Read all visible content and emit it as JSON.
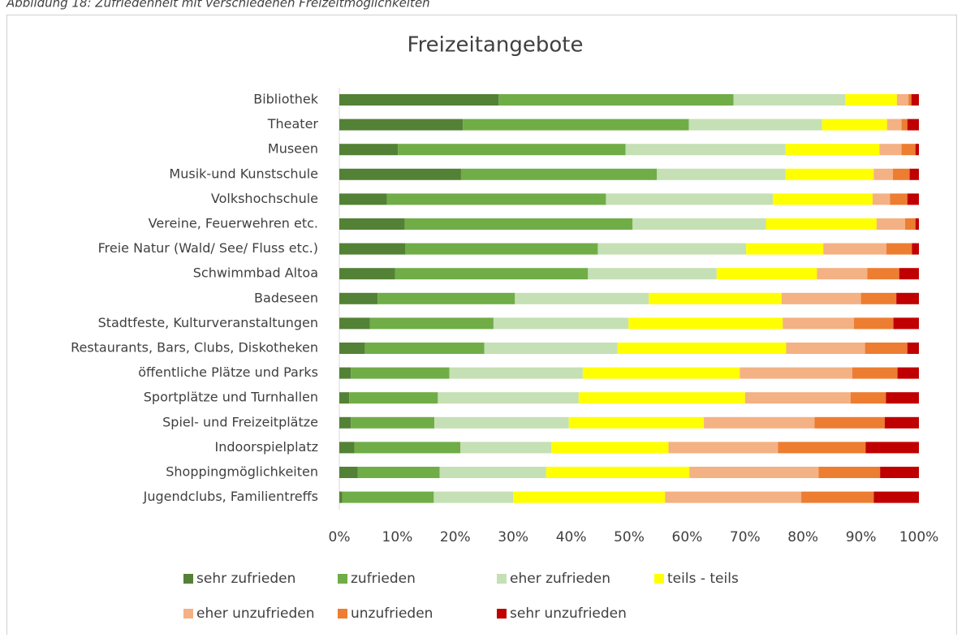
{
  "caption": "Abbildung 18: Zufriedenheit mit verschiedenen Freizeitmöglichkeiten",
  "chart_data": {
    "type": "bar",
    "orientation": "horizontal",
    "stacked": true,
    "title": "Freizeitangebote",
    "categories": [
      "Bibliothek",
      "Theater",
      "Museen",
      "Musik-und Kunstschule",
      "Volkshochschule",
      "Vereine, Feuerwehren etc.",
      "Freie Natur (Wald/ See/ Fluss etc.)",
      "Schwimmbad Altoa",
      "Badeseen",
      "Stadtfeste,  Kulturveranstaltungen",
      "Restaurants, Bars, Clubs, Diskotheken",
      "öffentliche Plätze und Parks",
      "Sportplätze und Turnhallen",
      "Spiel- und Freizeitplätze",
      "Indoorspielplatz",
      "Shoppingmöglichkeiten",
      "Jugendclubs, Familientreffs"
    ],
    "series": [
      {
        "name": "sehr zufrieden",
        "color": "#538135",
        "values": [
          27.5,
          21.3,
          10.1,
          21.0,
          8.2,
          11.3,
          11.4,
          9.6,
          6.6,
          5.3,
          4.4,
          2.0,
          1.7,
          2.0,
          2.6,
          3.2,
          0.5
        ]
      },
      {
        "name": "zufrieden",
        "color": "#70ad47",
        "values": [
          40.5,
          39.0,
          39.3,
          33.8,
          37.8,
          39.3,
          33.2,
          33.3,
          23.7,
          21.3,
          20.6,
          17.0,
          15.3,
          14.4,
          18.3,
          14.1,
          15.8
        ]
      },
      {
        "name": "eher zufrieden",
        "color": "#c5e0b4",
        "values": [
          19.3,
          23.0,
          27.6,
          22.2,
          28.8,
          23.0,
          25.6,
          22.2,
          23.1,
          23.3,
          23.0,
          23.0,
          24.3,
          23.2,
          15.7,
          18.4,
          13.7
        ]
      },
      {
        "name": "teils - teils",
        "color": "#ffff00",
        "values": [
          8.9,
          11.2,
          16.2,
          15.2,
          17.2,
          19.1,
          13.3,
          17.3,
          22.9,
          26.6,
          29.1,
          27.1,
          28.7,
          23.3,
          20.2,
          24.7,
          26.2
        ]
      },
      {
        "name": "eher unzufrieden",
        "color": "#f4b183",
        "values": [
          2.0,
          2.5,
          3.8,
          3.3,
          3.0,
          4.9,
          10.9,
          8.7,
          13.7,
          12.3,
          13.6,
          19.4,
          18.2,
          19.1,
          18.9,
          22.3,
          23.5
        ]
      },
      {
        "name": "unzufrieden",
        "color": "#ed7d31",
        "values": [
          0.5,
          1.0,
          2.4,
          2.9,
          3.0,
          1.8,
          4.4,
          5.5,
          6.1,
          6.8,
          7.3,
          7.8,
          6.1,
          12.1,
          15.1,
          10.6,
          12.5
        ]
      },
      {
        "name": "sehr unzufrieden",
        "color": "#c00000",
        "values": [
          1.3,
          2.0,
          0.6,
          1.6,
          2.0,
          0.6,
          1.2,
          3.4,
          3.9,
          4.4,
          2.0,
          3.7,
          5.7,
          5.9,
          9.2,
          6.7,
          7.8
        ]
      }
    ],
    "xlim": [
      0,
      100
    ],
    "xticks": [
      {
        "value": 0,
        "label": "0%"
      },
      {
        "value": 10,
        "label": "10%"
      },
      {
        "value": 20,
        "label": "20%"
      },
      {
        "value": 30,
        "label": "30%"
      },
      {
        "value": 40,
        "label": "40%"
      },
      {
        "value": 50,
        "label": "50%"
      },
      {
        "value": 60,
        "label": "60%"
      },
      {
        "value": 70,
        "label": "70%"
      },
      {
        "value": 80,
        "label": "80%"
      },
      {
        "value": 90,
        "label": "90%"
      },
      {
        "value": 100,
        "label": "100%"
      }
    ],
    "grid": false,
    "legend": "bottom"
  }
}
